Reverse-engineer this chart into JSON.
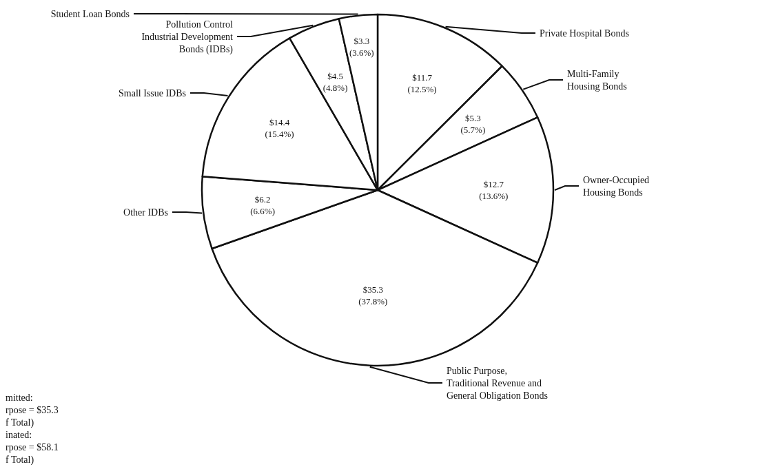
{
  "chart_data": {
    "type": "pie",
    "categories": [
      "Private Hospital Bonds",
      "Multi-Family\nHousing Bonds",
      "Owner-Occupied\nHousing Bonds",
      "Public Purpose,\nTraditional Revenue and\nGeneral Obligation Bonds",
      "Other IDBs",
      "Small Issue IDBs",
      "Pollution Control\nIndustrial Development\nBonds (IDBs)",
      "Student Loan Bonds"
    ],
    "values": [
      11.7,
      5.3,
      12.7,
      35.3,
      6.2,
      14.4,
      4.5,
      3.3
    ],
    "value_labels": [
      "$11.7\n(12.5%)",
      "$5.3\n(5.7%)",
      "$12.7\n(13.6%)",
      "$35.3\n(37.8%)",
      "$6.2\n(6.6%)",
      "$14.4\n(15.4%)",
      "$4.5\n(4.8%)",
      "$3.3\n(3.6%)"
    ],
    "colors": [
      "#ffffff",
      "#ffffff",
      "#ffffff",
      "#ffffff",
      "#ffffff",
      "#ffffff",
      "#ffffff",
      "#ffffff"
    ],
    "legend": false,
    "annotations": [
      "mitted:\nrpose = $35.3\nf Total)\ninated:\nrpose = $58.1\nf Total)"
    ]
  }
}
